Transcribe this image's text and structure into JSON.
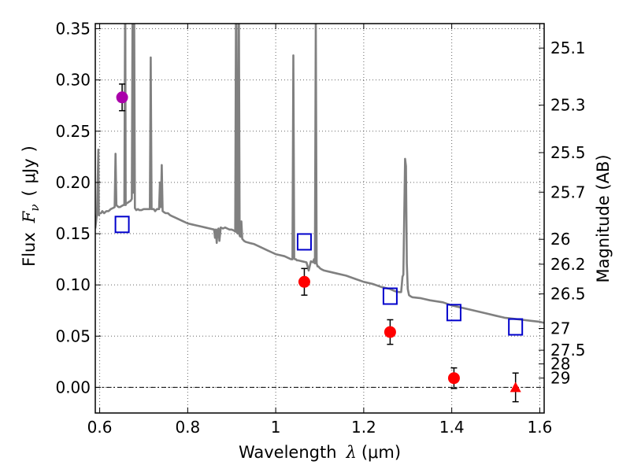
{
  "chart_data": {
    "type": "scatter",
    "xlabel": "Wavelength",
    "xlabel_symbol": "λ",
    "xlabel_unit": "(μm)",
    "ylabel": "Flux",
    "ylabel_symbol": "F",
    "ylabel_subscript": "ν",
    "ylabel_unit_open": "(",
    "ylabel_unit": "μJy",
    "ylabel_unit_close": ")",
    "y2label": "Magnitude (AB)",
    "xlim": [
      0.59,
      1.61
    ],
    "ylim": [
      -0.025,
      0.355
    ],
    "grid": true,
    "x_ticks": [
      {
        "value": 0.6,
        "label": "0.6"
      },
      {
        "value": 0.8,
        "label": "0.8"
      },
      {
        "value": 1.0,
        "label": "1"
      },
      {
        "value": 1.2,
        "label": "1.2"
      },
      {
        "value": 1.4,
        "label": "1.4"
      },
      {
        "value": 1.6,
        "label": "1.6"
      }
    ],
    "y_ticks": [
      {
        "value": 0.0,
        "label": "0.00"
      },
      {
        "value": 0.05,
        "label": "0.05"
      },
      {
        "value": 0.1,
        "label": "0.10"
      },
      {
        "value": 0.15,
        "label": "0.15"
      },
      {
        "value": 0.2,
        "label": "0.20"
      },
      {
        "value": 0.25,
        "label": "0.25"
      },
      {
        "value": 0.3,
        "label": "0.30"
      },
      {
        "value": 0.35,
        "label": "0.35"
      }
    ],
    "y2_ticks": [
      {
        "flux": 0.3311,
        "label": "25.1"
      },
      {
        "flux": 0.2754,
        "label": "25.3"
      },
      {
        "flux": 0.2291,
        "label": "25.5"
      },
      {
        "flux": 0.1905,
        "label": "25.7"
      },
      {
        "flux": 0.1445,
        "label": "26"
      },
      {
        "flux": 0.1202,
        "label": "26.2"
      },
      {
        "flux": 0.0912,
        "label": "26.5"
      },
      {
        "flux": 0.0575,
        "label": "27"
      },
      {
        "flux": 0.0363,
        "label": "27.5"
      },
      {
        "flux": 0.0229,
        "label": "28"
      },
      {
        "flux": 0.0091,
        "label": "29"
      }
    ],
    "series": [
      {
        "marker": "line",
        "color": "#808080",
        "x": [
          0.59,
          0.594,
          0.597,
          0.598,
          0.6,
          0.603,
          0.606,
          0.61,
          0.615,
          0.62,
          0.625,
          0.63,
          0.634,
          0.636,
          0.638,
          0.64,
          0.643,
          0.646,
          0.65,
          0.654,
          0.656,
          0.658,
          0.659,
          0.661,
          0.663,
          0.666,
          0.67,
          0.673,
          0.675,
          0.676,
          0.678,
          0.68,
          0.683,
          0.687,
          0.69,
          0.695,
          0.7,
          0.705,
          0.71,
          0.714,
          0.716,
          0.718,
          0.72,
          0.723,
          0.726,
          0.73,
          0.735,
          0.737,
          0.739,
          0.741,
          0.743,
          0.746,
          0.75,
          0.755,
          0.76,
          0.765,
          0.77,
          0.78,
          0.79,
          0.8,
          0.81,
          0.82,
          0.83,
          0.84,
          0.85,
          0.86,
          0.862,
          0.864,
          0.866,
          0.868,
          0.87,
          0.872,
          0.875,
          0.88,
          0.885,
          0.89,
          0.895,
          0.9,
          0.905,
          0.908,
          0.91,
          0.912,
          0.914,
          0.916,
          0.918,
          0.92,
          0.922,
          0.924,
          0.926,
          0.928,
          0.932,
          0.94,
          0.95,
          0.96,
          0.97,
          0.98,
          0.99,
          1.0,
          1.01,
          1.02,
          1.03,
          1.035,
          1.038,
          1.04,
          1.042,
          1.044,
          1.046,
          1.048,
          1.05,
          1.06,
          1.07,
          1.075,
          1.08,
          1.085,
          1.087,
          1.089,
          1.091,
          1.093,
          1.095,
          1.097,
          1.099,
          1.101,
          1.105,
          1.11,
          1.12,
          1.14,
          1.16,
          1.18,
          1.2,
          1.22,
          1.24,
          1.26,
          1.27,
          1.28,
          1.285,
          1.288,
          1.29,
          1.292,
          1.294,
          1.296,
          1.298,
          1.3,
          1.303,
          1.306,
          1.31,
          1.33,
          1.35,
          1.38,
          1.4,
          1.42,
          1.44,
          1.46,
          1.48,
          1.5,
          1.52,
          1.54,
          1.56,
          1.58,
          1.6,
          1.61
        ],
        "y": [
          0.155,
          0.17,
          0.232,
          0.168,
          0.17,
          0.17,
          0.172,
          0.17,
          0.172,
          0.172,
          0.174,
          0.175,
          0.176,
          0.228,
          0.178,
          0.177,
          0.176,
          0.176,
          0.177,
          0.178,
          0.178,
          0.4,
          0.178,
          0.18,
          0.18,
          0.181,
          0.182,
          0.184,
          0.4,
          0.19,
          0.4,
          0.175,
          0.173,
          0.174,
          0.173,
          0.173,
          0.174,
          0.174,
          0.174,
          0.174,
          0.322,
          0.174,
          0.174,
          0.174,
          0.172,
          0.174,
          0.174,
          0.2,
          0.176,
          0.217,
          0.172,
          0.171,
          0.17,
          0.17,
          0.168,
          0.167,
          0.166,
          0.164,
          0.162,
          0.16,
          0.159,
          0.158,
          0.157,
          0.156,
          0.155,
          0.154,
          0.146,
          0.154,
          0.141,
          0.154,
          0.155,
          0.143,
          0.156,
          0.155,
          0.156,
          0.155,
          0.154,
          0.154,
          0.153,
          0.152,
          0.4,
          0.151,
          0.15,
          0.4,
          0.148,
          0.147,
          0.162,
          0.145,
          0.144,
          0.143,
          0.142,
          0.141,
          0.14,
          0.138,
          0.136,
          0.134,
          0.132,
          0.13,
          0.129,
          0.128,
          0.126,
          0.125,
          0.125,
          0.324,
          0.126,
          0.125,
          0.125,
          0.124,
          0.124,
          0.123,
          0.122,
          0.114,
          0.123,
          0.122,
          0.125,
          0.121,
          0.358,
          0.121,
          0.118,
          0.118,
          0.117,
          0.116,
          0.115,
          0.114,
          0.113,
          0.111,
          0.109,
          0.106,
          0.103,
          0.101,
          0.098,
          0.096,
          0.094,
          0.093,
          0.093,
          0.108,
          0.11,
          0.166,
          0.223,
          0.216,
          0.121,
          0.096,
          0.09,
          0.089,
          0.088,
          0.087,
          0.085,
          0.083,
          0.08,
          0.078,
          0.076,
          0.074,
          0.072,
          0.07,
          0.068,
          0.067,
          0.066,
          0.065,
          0.064,
          0.063
        ]
      },
      {
        "marker": "open-square",
        "color": "#0000cc",
        "x": [
          0.651,
          1.065,
          1.26,
          1.405,
          1.545
        ],
        "y": [
          0.159,
          0.142,
          0.089,
          0.073,
          0.059
        ]
      },
      {
        "marker": "filled-circle",
        "color": "#ff0000",
        "x": [
          1.065,
          1.26,
          1.405
        ],
        "y": [
          0.103,
          0.054,
          0.009
        ],
        "yerr": [
          0.013,
          0.012,
          0.01
        ]
      },
      {
        "marker": "filled-circle",
        "color": "#aa00aa",
        "x": [
          0.651
        ],
        "y": [
          0.283
        ],
        "yerr": [
          0.013
        ]
      },
      {
        "marker": "triangle-up",
        "color": "#ff0000",
        "x": [
          1.545
        ],
        "y": [
          0.0
        ],
        "yerr": [
          0.014
        ]
      }
    ]
  }
}
